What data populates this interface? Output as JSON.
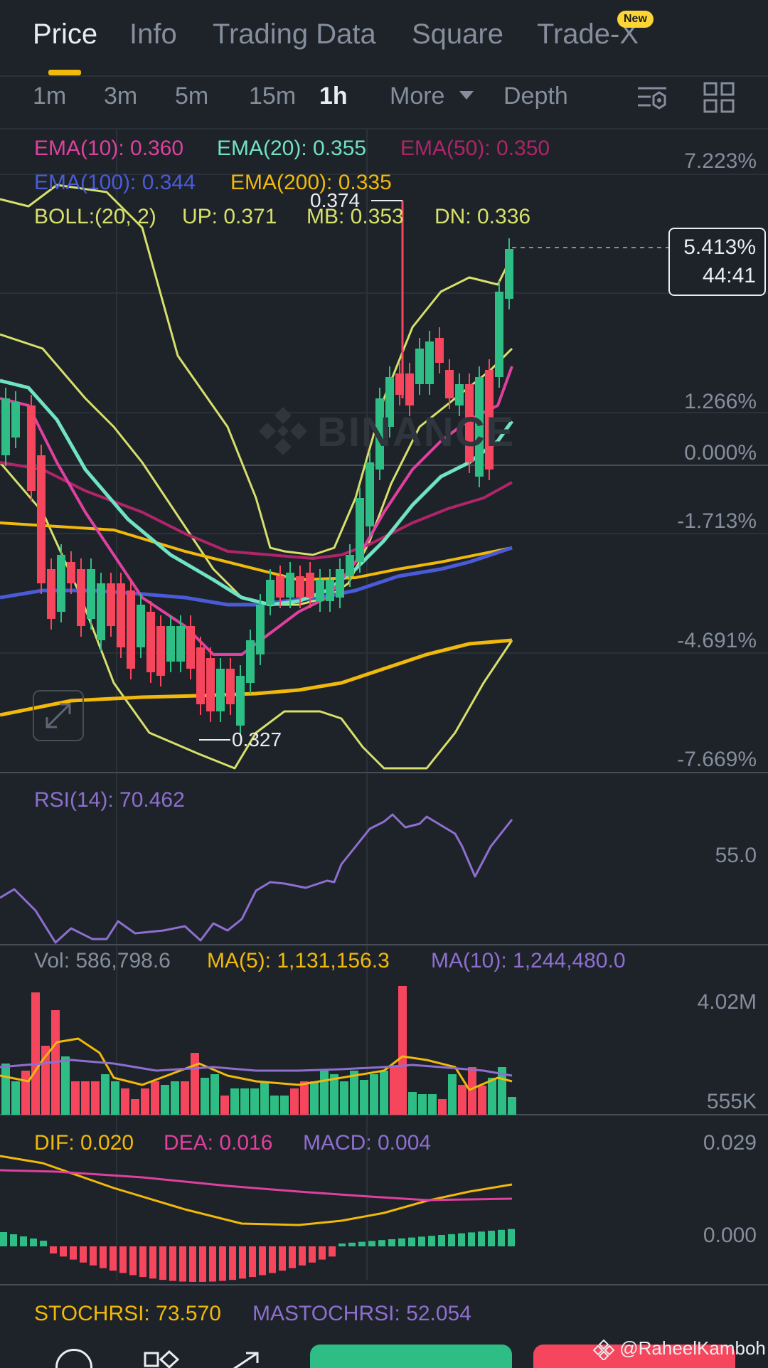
{
  "top_tabs": [
    {
      "label": "Price",
      "active": true
    },
    {
      "label": "Info"
    },
    {
      "label": "Trading Data"
    },
    {
      "label": "Square"
    },
    {
      "label": "Trade-X"
    }
  ],
  "new_badge": "New",
  "intervals": [
    "1m",
    "3m",
    "5m",
    "15m",
    "1h",
    "More",
    "Depth"
  ],
  "active_interval": "1h",
  "main_indicators": {
    "ema10": "EMA(10): 0.360",
    "ema20": "EMA(20): 0.355",
    "ema50": "EMA(50): 0.350",
    "ema100": "EMA(100): 0.344",
    "ema200": "EMA(200): 0.335",
    "boll": "BOLL:(20, 2)",
    "boll_up": "UP: 0.371",
    "boll_mb": "MB: 0.353",
    "boll_dn": "DN: 0.336"
  },
  "price_axis": [
    "7.223%",
    "1.266%",
    "0.000%",
    "-1.713%",
    "-4.691%",
    "-7.669%"
  ],
  "current_price_box": {
    "change": "5.413%",
    "countdown": "44:41"
  },
  "high_label": "0.374",
  "low_label": "0.327",
  "watermark": "BINANCE",
  "rsi": {
    "label": "RSI(14): 70.462",
    "axis": "55.0"
  },
  "volume": {
    "vol": "Vol: 586,798.6",
    "ma5": "MA(5): 1,131,156.3",
    "ma10": "MA(10): 1,244,480.0",
    "axis_top": "4.02M",
    "axis_bottom": "555K"
  },
  "macd": {
    "dif": "DIF: 0.020",
    "dea": "DEA: 0.016",
    "macd": "MACD: 0.004",
    "axis_top": "0.029",
    "axis_zero": "0.000"
  },
  "stochrsi": {
    "stoch": "STOCHRSI: 73.570",
    "mastoch": "MASTOCHRSI: 52.054"
  },
  "credit": "@RaheelKamboh",
  "colors": {
    "up": "#2ebd85",
    "down": "#f6465d",
    "ema10": "#e040a0",
    "ema20": "#6fe3c2",
    "ema50": "#b0246a",
    "ema100": "#4a5bd8",
    "ema200": "#f0b90b",
    "boll": "#d6e06a",
    "rsi": "#8e6fd0",
    "accent": "#f0b90b"
  }
}
